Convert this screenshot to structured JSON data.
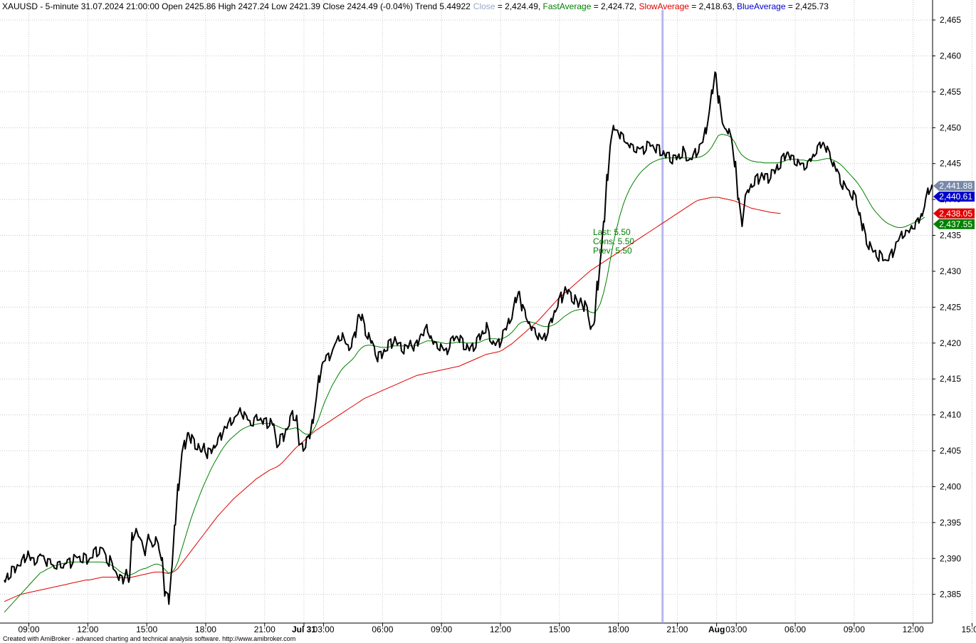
{
  "header": {
    "symbol_line": "XAUUSD - 5-minute 31.07.2024 21:00:00 Open 2425.86 High 2427.24 Low 2421.39 Close 2424.49 (-0.04%) Trend 5.44922",
    "close_label": "Close",
    "close_value": " = 2,424.49, ",
    "fast_label": "FastAverage",
    "fast_value": " = 2,424.72, ",
    "slow_label": "SlowAverage",
    "slow_value": " = 2,418.63, ",
    "blue_label": "BlueAverage",
    "blue_value": " = 2,425.73"
  },
  "annotation": {
    "last": "Last: 5.50",
    "cons": "Cons: 5.50",
    "prev": "Prev: 5.50"
  },
  "footer": "Created with AmiBroker - advanced charting and technical analysis software. http://www.amibroker.com",
  "colors": {
    "price": "#000000",
    "fast": "#008000",
    "slow": "#e00000",
    "blue": "#0000cc",
    "cursor": "#9999ee",
    "grid": "#c8c8c8",
    "close_label": "#9aa8c8"
  },
  "chart_data": {
    "type": "line",
    "symbol": "XAUUSD",
    "interval": "5-minute",
    "ylim": [
      2381,
      2466
    ],
    "y_ticks": [
      "2,385",
      "2,390",
      "2,395",
      "2,400",
      "2,405",
      "2,410",
      "2,415",
      "2,420",
      "2,425",
      "2,430",
      "2,435",
      "2,440",
      "2,445",
      "2,450",
      "2,455",
      "2,460",
      "2,465"
    ],
    "x_ticks": [
      "09:00",
      "12:00",
      "15:00",
      "18:00",
      "21:00",
      "Jul 31",
      "03:00",
      "06:00",
      "09:00",
      "12:00",
      "15:00",
      "18:00",
      "21:00",
      "Aug",
      "03:00",
      "06:00",
      "09:00",
      "12:00",
      "15:00"
    ],
    "x_tick_index": [
      7.5,
      25.5,
      43.5,
      61.5,
      79.5,
      91.5,
      97.5,
      115.5,
      133.5,
      151.5,
      169.5,
      187.5,
      205.5,
      217.5,
      223.5,
      241.5,
      259.5,
      277.5,
      295.5
    ],
    "last_labels": [
      {
        "text": "2,441.88",
        "value": 2441.88,
        "color": "#7788aa"
      },
      {
        "text": "2,440.61",
        "value": 2440.61,
        "color": "#0000cc"
      },
      {
        "text": "2,438.05",
        "value": 2438.05,
        "color": "#e00000"
      },
      {
        "text": "2,437.55",
        "value": 2437.55,
        "color": "#008000"
      }
    ],
    "cursor_index": 201,
    "series": [
      {
        "name": "Close",
        "values": [
          2387,
          2387.5,
          2388,
          2388.5,
          2389,
          2389.5,
          2390,
          2390.5,
          2390,
          2389.5,
          2390,
          2390.5,
          2390,
          2389.5,
          2389.5,
          2389,
          2389,
          2389,
          2389,
          2389.5,
          2389.5,
          2390,
          2390,
          2390,
          2390,
          2390,
          2390,
          2390.5,
          2391,
          2391,
          2391.5,
          2390,
          2389.5,
          2389,
          2388,
          2387.5,
          2387,
          2388,
          2387,
          2393,
          2394,
          2393,
          2392,
          2391,
          2393,
          2392,
          2392.5,
          2391.5,
          2390,
          2385,
          2384.5,
          2388.5,
          2394.5,
          2400,
          2404,
          2406,
          2407.5,
          2406.5,
          2406,
          2405.5,
          2405,
          2405.5,
          2404.5,
          2405,
          2405.5,
          2406.5,
          2407,
          2408,
          2408.5,
          2409,
          2409.5,
          2410,
          2410.5,
          2410,
          2409.5,
          2409,
          2409,
          2409.5,
          2409.5,
          2409,
          2409,
          2409,
          2408.5,
          2406,
          2406.5,
          2407,
          2408,
          2409,
          2410,
          2409.5,
          2406,
          2405.5,
          2406,
          2407,
          2409,
          2412,
          2415,
          2417,
          2418,
          2418,
          2419,
          2420,
          2420.5,
          2421,
          2420,
          2419.5,
          2420,
          2421,
          2424,
          2423.5,
          2422,
          2421,
          2420,
          2419,
          2418,
          2418.5,
          2419,
          2419.5,
          2420,
          2420.5,
          2420,
          2419.5,
          2419,
          2419.5,
          2420,
          2419.5,
          2420,
          2421,
          2421.5,
          2422,
          2421,
          2420,
          2419.5,
          2419.5,
          2419,
          2419,
          2420,
          2420.5,
          2421,
          2420.5,
          2420,
          2419.5,
          2419,
          2419.5,
          2420,
          2421,
          2421.5,
          2422,
          2421,
          2420,
          2420,
          2420,
          2421,
          2422,
          2423,
          2424,
          2426,
          2427,
          2425,
          2424,
          2423,
          2422,
          2421.5,
          2421,
          2420.5,
          2421,
          2422,
          2423,
          2424.5,
          2425.5,
          2426.5,
          2427.5,
          2427,
          2426.5,
          2426,
          2425.5,
          2426,
          2425,
          2424.5,
          2422,
          2423,
          2428,
          2432,
          2437,
          2443,
          2448,
          2450,
          2449.5,
          2449,
          2448.5,
          2448,
          2447.5,
          2447,
          2447,
          2447,
          2447,
          2447.5,
          2447.5,
          2447.5,
          2447,
          2447,
          2446.5,
          2446,
          2446,
          2445.5,
          2446,
          2446,
          2446.5,
          2446,
          2445.5,
          2446,
          2446.5,
          2447,
          2448,
          2449.5,
          2452,
          2455,
          2457.5,
          2454,
          2451,
          2450,
          2449.5,
          2448,
          2445,
          2440,
          2437,
          2440,
          2441,
          2442,
          2442.5,
          2443,
          2443.5,
          2443,
          2443,
          2443.5,
          2444,
          2444.5,
          2445,
          2446,
          2446.5,
          2446,
          2445.5,
          2445,
          2445,
          2444.5,
          2445,
          2445.5,
          2446,
          2447,
          2447.5,
          2448,
          2447,
          2446,
          2445,
          2444,
          2443,
          2442,
          2441.5,
          2441,
          2440.5,
          2440,
          2438,
          2436,
          2434.5,
          2433.5,
          2433,
          2432.5,
          2432,
          2432,
          2431.5,
          2432,
          2432.5,
          2433.5,
          2434.5,
          2435,
          2435.5,
          2435.5,
          2436,
          2436.5,
          2437,
          2438,
          2439.5,
          2441,
          2441.88
        ]
      },
      {
        "name": "FastAverage",
        "values": [
          2382.5,
          2383,
          2383.5,
          2384,
          2384.5,
          2385,
          2385.5,
          2386,
          2386.5,
          2387,
          2387.5,
          2388,
          2388.2,
          2388.5,
          2388.7,
          2389,
          2389,
          2389.2,
          2389.3,
          2389.4,
          2389.5,
          2389.5,
          2389.5,
          2389.5,
          2389.5,
          2389.5,
          2389.5,
          2389.5,
          2389.5,
          2389.5,
          2389.5,
          2389.4,
          2389.2,
          2389,
          2388.7,
          2388.3,
          2388,
          2387.8,
          2387.6,
          2387.8,
          2388,
          2388.3,
          2388.5,
          2388.6,
          2388.8,
          2389,
          2389.2,
          2389.2,
          2389,
          2388.5,
          2388,
          2388,
          2388.5,
          2389.5,
          2391,
          2392.5,
          2394,
          2395.5,
          2396.8,
          2398,
          2399.2,
          2400.3,
          2401.3,
          2402.3,
          2403.2,
          2404,
          2404.8,
          2405.5,
          2406.1,
          2406.6,
          2407,
          2407.4,
          2407.8,
          2408.1,
          2408.3,
          2408.5,
          2408.6,
          2408.7,
          2408.8,
          2408.8,
          2408.8,
          2408.8,
          2408.7,
          2408.5,
          2408.3,
          2408.1,
          2408,
          2408,
          2408.1,
          2408.2,
          2408,
          2407.6,
          2407.3,
          2407.3,
          2407.6,
          2408.4,
          2409.5,
          2410.8,
          2412,
          2413,
          2414,
          2414.8,
          2415.6,
          2416.3,
          2416.8,
          2417.2,
          2417.6,
          2418.1,
          2418.8,
          2419.3,
          2419.6,
          2419.7,
          2419.7,
          2419.6,
          2419.5,
          2419.4,
          2419.4,
          2419.4,
          2419.5,
          2419.6,
          2419.6,
          2419.6,
          2419.6,
          2419.6,
          2419.6,
          2419.6,
          2419.7,
          2419.9,
          2420.1,
          2420.3,
          2420.3,
          2420.3,
          2420.2,
          2420.1,
          2420,
          2419.9,
          2420,
          2420,
          2420.1,
          2420.1,
          2420.1,
          2420,
          2420,
          2420,
          2420,
          2420.1,
          2420.3,
          2420.5,
          2420.6,
          2420.6,
          2420.6,
          2420.5,
          2420.6,
          2420.8,
          2421.1,
          2421.5,
          2422,
          2422.6,
          2422.9,
          2423,
          2423,
          2422.9,
          2422.8,
          2422.6,
          2422.4,
          2422.3,
          2422.3,
          2422.4,
          2422.6,
          2422.9,
          2423.3,
          2423.7,
          2424,
          2424.3,
          2424.5,
          2424.6,
          2424.7,
          2424.7,
          2424.6,
          2424.3,
          2424.2,
          2424.6,
          2425.5,
          2427,
          2429,
          2431.5,
          2434,
          2436,
          2437.8,
          2439.3,
          2440.5,
          2441.5,
          2442.3,
          2443,
          2443.6,
          2444.1,
          2444.5,
          2444.9,
          2445.2,
          2445.4,
          2445.6,
          2445.7,
          2445.8,
          2445.8,
          2445.8,
          2445.8,
          2445.8,
          2445.8,
          2445.8,
          2445.8,
          2445.8,
          2445.8,
          2445.9,
          2446,
          2446.3,
          2446.7,
          2447.3,
          2448.1,
          2448.9,
          2449.1,
          2449,
          2448.9,
          2448.6,
          2448,
          2447,
          2446.3,
          2445.9,
          2445.6,
          2445.4,
          2445.3,
          2445.2,
          2445.2,
          2445.1,
          2445.1,
          2445.1,
          2445.1,
          2445.1,
          2445.2,
          2445.3,
          2445.5,
          2445.6,
          2445.6,
          2445.6,
          2445.5,
          2445.5,
          2445.4,
          2445.4,
          2445.4,
          2445.4,
          2445.5,
          2445.6,
          2445.7,
          2445.7,
          2445.5,
          2445.3,
          2445,
          2444.6,
          2444.1,
          2443.6,
          2443.1,
          2442.6,
          2442,
          2441.3,
          2440.5,
          2439.7,
          2438.9,
          2438.3,
          2437.8,
          2437.3,
          2436.9,
          2436.6,
          2436.4,
          2436.2,
          2436.1,
          2436.1,
          2436.2,
          2436.4,
          2436.6,
          2436.8,
          2437,
          2437.2,
          2437.55
        ]
      },
      {
        "name": "SlowAverage",
        "values": [
          2384,
          2384.2,
          2384.4,
          2384.6,
          2384.8,
          2385,
          2385.1,
          2385.2,
          2385.3,
          2385.4,
          2385.5,
          2385.6,
          2385.7,
          2385.8,
          2385.9,
          2386,
          2386.1,
          2386.2,
          2386.3,
          2386.4,
          2386.5,
          2386.6,
          2386.7,
          2386.8,
          2386.9,
          2387,
          2387,
          2387.1,
          2387.2,
          2387.3,
          2387.4,
          2387.4,
          2387.4,
          2387.4,
          2387.4,
          2387.3,
          2387.3,
          2387.3,
          2387.3,
          2387.4,
          2387.5,
          2387.6,
          2387.7,
          2387.8,
          2387.9,
          2388,
          2388.1,
          2388.1,
          2388.1,
          2388,
          2387.9,
          2388,
          2388.2,
          2388.6,
          2389.2,
          2389.8,
          2390.4,
          2391,
          2391.6,
          2392.2,
          2392.8,
          2393.4,
          2394,
          2394.6,
          2395.2,
          2395.8,
          2396.3,
          2396.8,
          2397.3,
          2397.8,
          2398.3,
          2398.7,
          2399.1,
          2399.5,
          2399.9,
          2400.3,
          2400.7,
          2401.1,
          2401.4,
          2401.7,
          2402,
          2402.3,
          2402.5,
          2402.7,
          2403,
          2403.4,
          2403.9,
          2404.4,
          2404.9,
          2405.4,
          2405.8,
          2406.2,
          2406.6,
          2407,
          2407.4,
          2407.8,
          2408.1,
          2408.4,
          2408.7,
          2409,
          2409.3,
          2409.6,
          2409.9,
          2410.2,
          2410.5,
          2410.8,
          2411.1,
          2411.4,
          2411.7,
          2412,
          2412.3,
          2412.5,
          2412.7,
          2412.9,
          2413.1,
          2413.3,
          2413.5,
          2413.7,
          2413.9,
          2414.1,
          2414.3,
          2414.5,
          2414.7,
          2414.9,
          2415.1,
          2415.3,
          2415.5,
          2415.6,
          2415.7,
          2415.8,
          2415.9,
          2416,
          2416.1,
          2416.2,
          2416.3,
          2416.4,
          2416.5,
          2416.6,
          2416.7,
          2416.8,
          2417,
          2417.2,
          2417.4,
          2417.6,
          2417.8,
          2418,
          2418.2,
          2418.4,
          2418.5,
          2418.6,
          2418.7,
          2418.8,
          2419,
          2419.3,
          2419.6,
          2419.9,
          2420.3,
          2420.7,
          2421.1,
          2421.5,
          2421.9,
          2422.3,
          2422.7,
          2423.1,
          2423.6,
          2424.1,
          2424.6,
          2425.1,
          2425.6,
          2426.1,
          2426.5,
          2426.9,
          2427.3,
          2427.7,
          2428.1,
          2428.5,
          2428.9,
          2429.3,
          2429.7,
          2430.1,
          2430.4,
          2430.7,
          2431,
          2431.3,
          2431.6,
          2431.9,
          2432.2,
          2432.5,
          2432.8,
          2433.1,
          2433.4,
          2433.7,
          2434,
          2434.3,
          2434.6,
          2434.9,
          2435.2,
          2435.5,
          2435.8,
          2436.1,
          2436.4,
          2436.7,
          2437,
          2437.3,
          2437.6,
          2437.9,
          2438.2,
          2438.5,
          2438.8,
          2439.1,
          2439.4,
          2439.7,
          2439.9,
          2440,
          2440.1,
          2440.2,
          2440.3,
          2440.3,
          2440.3,
          2440.2,
          2440.1,
          2440,
          2439.9,
          2439.8,
          2439.6,
          2439.4,
          2439.2,
          2439,
          2438.8,
          2438.7,
          2438.6,
          2438.5,
          2438.4,
          2438.3,
          2438.2,
          2438.15,
          2438.1,
          2438.05
        ]
      }
    ]
  }
}
